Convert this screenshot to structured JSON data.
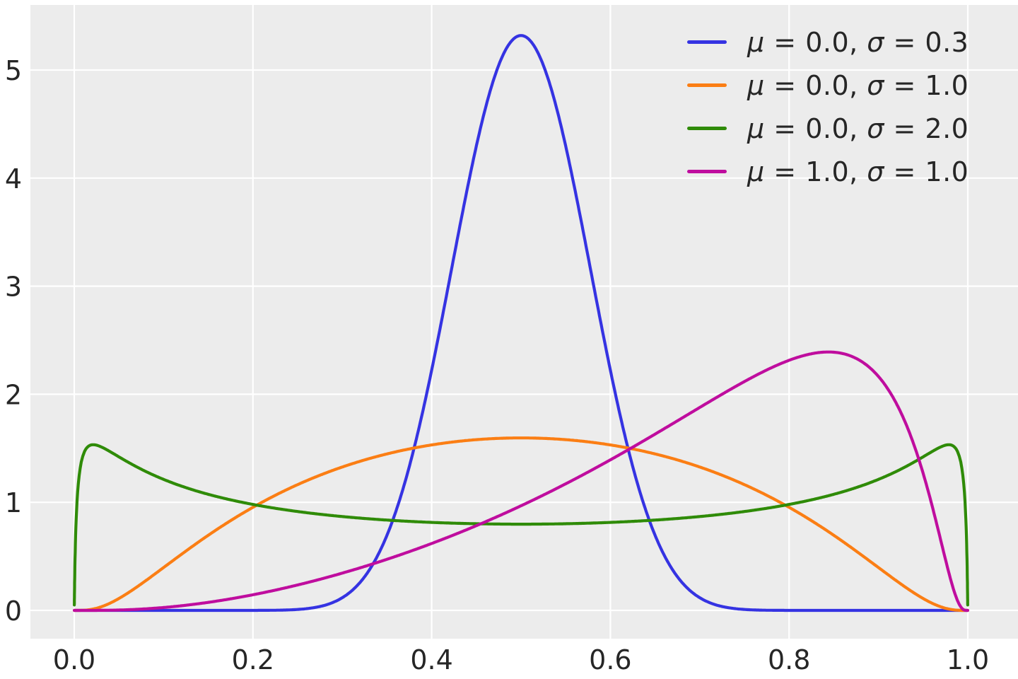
{
  "chart_data": {
    "type": "line",
    "title": "",
    "xlabel": "",
    "ylabel": "",
    "function_family": "logit-normal probability density function f(x; mu, sigma)",
    "grid": true,
    "plot_bg": "#ececec",
    "grid_color": "#ffffff",
    "tick_color": "#262626",
    "xlim": [
      -0.05,
      1.06
    ],
    "ylim": [
      -0.26,
      5.6
    ],
    "x_range_plotted": [
      0.0001,
      0.9999
    ],
    "x_tick_values": [
      0.0,
      0.2,
      0.4,
      0.6,
      0.8,
      1.0
    ],
    "x_tick_labels": [
      "0.0",
      "0.2",
      "0.4",
      "0.6",
      "0.8",
      "1.0"
    ],
    "y_tick_values": [
      0,
      1,
      2,
      3,
      4,
      5
    ],
    "y_tick_labels": [
      "0",
      "1",
      "2",
      "3",
      "4",
      "5"
    ],
    "legend_position": "upper right",
    "legend_frame": false,
    "series": [
      {
        "label": "μ = 0.0, σ = 0.3",
        "mu": "0.0",
        "sigma": "0.3",
        "mu_value": 0.0,
        "sigma_value": 0.3,
        "color": "#3533e2",
        "peak": {
          "x": 0.5,
          "y": 5.32
        },
        "samples": [
          [
            0.25,
            0.01
          ],
          [
            0.3,
            0.12
          ],
          [
            0.35,
            0.7
          ],
          [
            0.4,
            2.22
          ],
          [
            0.45,
            4.3
          ],
          [
            0.5,
            5.32
          ],
          [
            0.55,
            4.3
          ],
          [
            0.6,
            2.22
          ],
          [
            0.65,
            0.7
          ],
          [
            0.7,
            0.12
          ],
          [
            0.75,
            0.01
          ]
        ]
      },
      {
        "label": "μ = 0.0, σ = 1.0",
        "mu": "0.0",
        "sigma": "1.0",
        "mu_value": 0.0,
        "sigma_value": 1.0,
        "color": "#fb7e14",
        "peak": {
          "x": 0.5,
          "y": 1.6
        },
        "samples": [
          [
            0.05,
            0.11
          ],
          [
            0.1,
            0.4
          ],
          [
            0.15,
            0.7
          ],
          [
            0.2,
            0.95
          ],
          [
            0.25,
            1.16
          ],
          [
            0.3,
            1.33
          ],
          [
            0.35,
            1.45
          ],
          [
            0.4,
            1.53
          ],
          [
            0.45,
            1.58
          ],
          [
            0.5,
            1.6
          ],
          [
            0.55,
            1.58
          ],
          [
            0.6,
            1.53
          ],
          [
            0.65,
            1.45
          ],
          [
            0.7,
            1.33
          ],
          [
            0.75,
            1.16
          ],
          [
            0.8,
            0.95
          ],
          [
            0.85,
            0.7
          ],
          [
            0.9,
            0.4
          ],
          [
            0.95,
            0.11
          ]
        ]
      },
      {
        "label": "μ = 0.0, σ = 2.0",
        "mu": "0.0",
        "sigma": "2.0",
        "mu_value": 0.0,
        "sigma_value": 2.0,
        "color": "#2f8b08",
        "peak": {
          "x": 0.02,
          "y": 1.53
        },
        "samples": [
          [
            0.02,
            1.53
          ],
          [
            0.05,
            1.42
          ],
          [
            0.1,
            1.21
          ],
          [
            0.2,
            0.98
          ],
          [
            0.3,
            0.87
          ],
          [
            0.4,
            0.81
          ],
          [
            0.5,
            0.8
          ],
          [
            0.6,
            0.81
          ],
          [
            0.7,
            0.87
          ],
          [
            0.8,
            0.98
          ],
          [
            0.9,
            1.21
          ],
          [
            0.95,
            1.42
          ],
          [
            0.98,
            1.53
          ]
        ]
      },
      {
        "label": "μ = 1.0, σ = 1.0",
        "mu": "1.0",
        "sigma": "1.0",
        "mu_value": 1.0,
        "sigma_value": 1.0,
        "color": "#bf0d9e",
        "peak": {
          "x": 0.85,
          "y": 2.39
        },
        "samples": [
          [
            0.1,
            0.03
          ],
          [
            0.2,
            0.14
          ],
          [
            0.3,
            0.35
          ],
          [
            0.4,
            0.62
          ],
          [
            0.5,
            0.97
          ],
          [
            0.6,
            1.39
          ],
          [
            0.7,
            1.88
          ],
          [
            0.8,
            2.31
          ],
          [
            0.85,
            2.39
          ],
          [
            0.9,
            2.16
          ],
          [
            0.95,
            1.27
          ],
          [
            0.98,
            0.31
          ]
        ]
      }
    ]
  },
  "legend": {
    "mu_symbol": "μ",
    "sigma_symbol": "σ",
    "equals": " = ",
    "separator": ", "
  }
}
